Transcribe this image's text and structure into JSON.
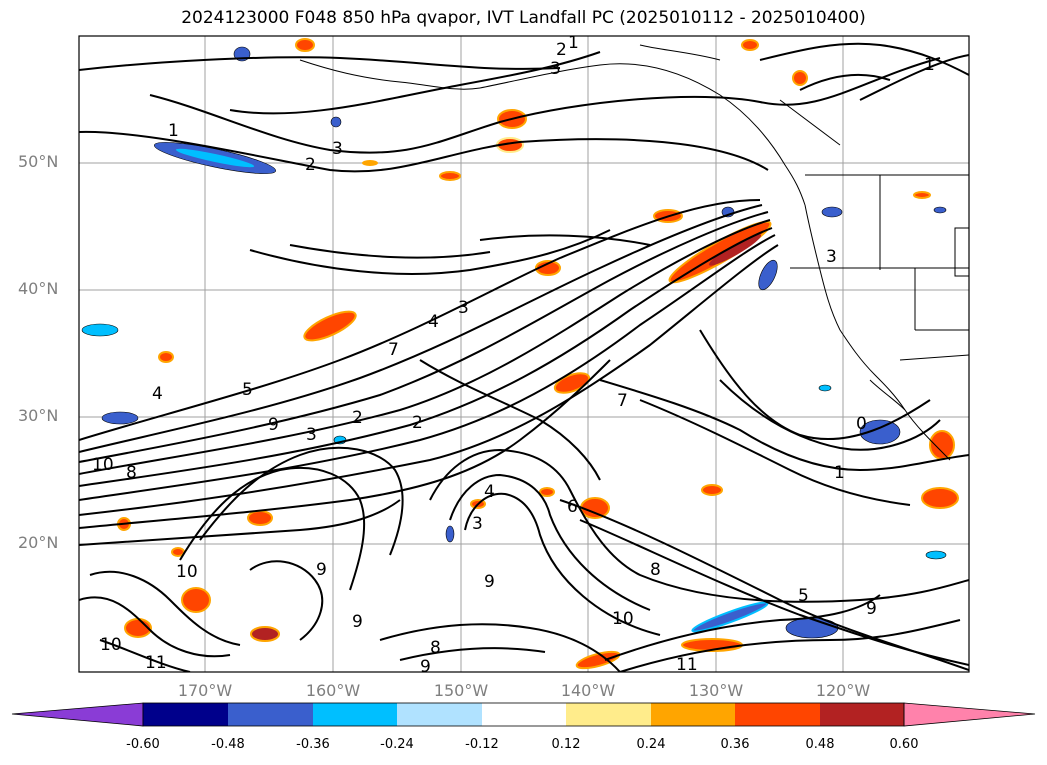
{
  "title": "2024123000 F048 850 hPa qvapor, IVT Landfall PC (2025010112 - 2025010400)",
  "map": {
    "lat_labels": [
      "50°N",
      "40°N",
      "30°N",
      "20°N"
    ],
    "lon_labels": [
      "170°W",
      "160°W",
      "150°W",
      "140°W",
      "130°W",
      "120°W"
    ],
    "contour_labels": [
      "1",
      "2",
      "3",
      "3",
      "3",
      "2",
      "1",
      "2",
      "3",
      "4",
      "7",
      "5",
      "4",
      "9",
      "10",
      "8",
      "7",
      "2",
      "3",
      "9",
      "9",
      "9",
      "10",
      "11",
      "8",
      "6",
      "5",
      "4",
      "3",
      "0",
      "1",
      "1",
      "10",
      "8",
      "9",
      "9",
      "11",
      "10"
    ],
    "colors": {
      "neg_060": "#8a3cd6",
      "neg_048": "#00008b",
      "neg_036": "#3a5fcd",
      "neg_024": "#00bfff",
      "neg_012": "#b0e2ff",
      "zero": "#ffffff",
      "pos_012": "#ffec8b",
      "pos_024": "#ffa500",
      "pos_036": "#ff4500",
      "pos_048": "#b22222",
      "pos_060": "#ff82ab"
    }
  },
  "colorbar": {
    "ticks": [
      "-0.60",
      "-0.48",
      "-0.36",
      "-0.24",
      "-0.12",
      "0.12",
      "0.24",
      "0.36",
      "0.48",
      "0.60"
    ],
    "colors": [
      "#8a3cd6",
      "#00008b",
      "#3a5fcd",
      "#00bfff",
      "#b0e2ff",
      "#ffffff",
      "#ffec8b",
      "#ffa500",
      "#ff4500",
      "#b22222",
      "#ff82ab"
    ]
  }
}
